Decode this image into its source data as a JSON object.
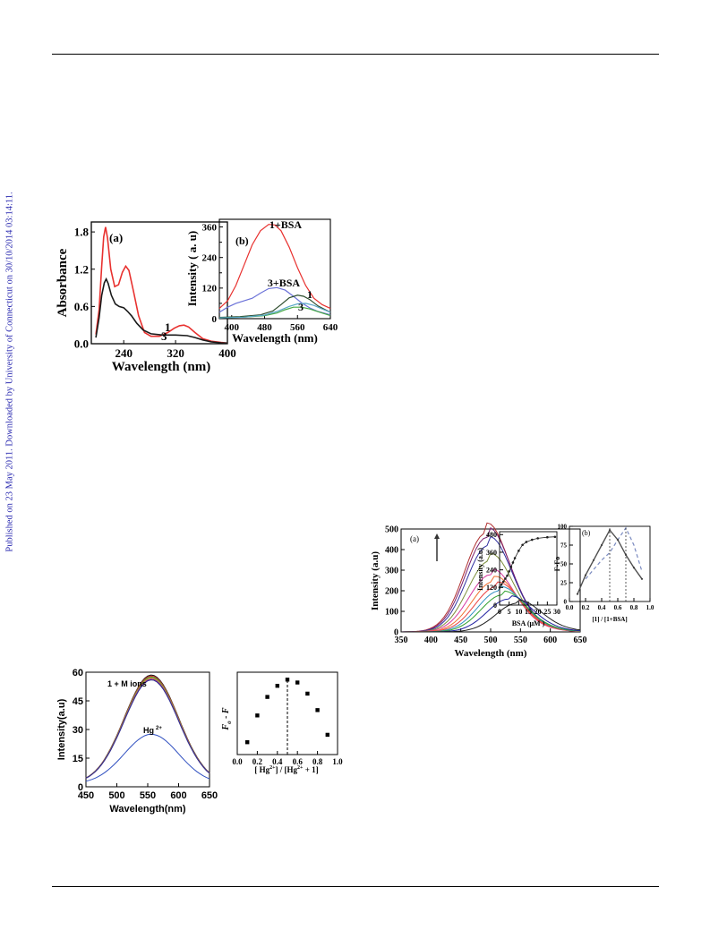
{
  "side_note": "Published on 23 May 2011. Downloaded by University of Connecticut on 30/10/2014 03:14:11.",
  "chart_data": [
    {
      "type": "line",
      "panel_label": "(a)",
      "xlabel": "Wavelength (nm)",
      "ylabel": "Absorbance",
      "xlim": [
        190,
        400
      ],
      "ylim": [
        0,
        2.0
      ],
      "x_ticks": [
        "240",
        "320",
        "400"
      ],
      "y_ticks": [
        "0.0",
        "0.6",
        "1.2",
        "1.8"
      ],
      "series": [
        {
          "name": "1",
          "color": "#e8312f",
          "x": [
            197,
            202,
            206,
            209,
            212,
            215,
            220,
            226,
            232,
            238,
            243,
            248,
            255,
            263,
            272,
            282,
            295,
            308,
            318,
            326,
            333,
            340,
            350,
            362,
            375,
            390,
            400
          ],
          "y": [
            0.15,
            0.55,
            1.25,
            1.72,
            1.88,
            1.7,
            1.2,
            0.92,
            0.95,
            1.15,
            1.25,
            1.18,
            0.85,
            0.45,
            0.18,
            0.12,
            0.12,
            0.18,
            0.25,
            0.29,
            0.3,
            0.27,
            0.18,
            0.08,
            0.04,
            0.02,
            0.01
          ]
        },
        {
          "name": "3",
          "color": "#1a1a1a",
          "x": [
            197,
            202,
            206,
            210,
            213,
            216,
            221,
            227,
            233,
            240,
            246,
            252,
            260,
            270,
            282,
            300,
            320,
            338,
            350,
            362,
            375,
            390,
            400
          ],
          "y": [
            0.1,
            0.42,
            0.78,
            0.98,
            1.04,
            0.97,
            0.78,
            0.64,
            0.6,
            0.58,
            0.52,
            0.45,
            0.33,
            0.22,
            0.16,
            0.14,
            0.14,
            0.13,
            0.1,
            0.06,
            0.03,
            0.015,
            0.01
          ]
        }
      ],
      "annotations": [
        "1",
        "3"
      ]
    },
    {
      "type": "line",
      "panel_label": "(b)",
      "xlabel": "Wavelength (nm)",
      "ylabel": "Intensity ( a. u)",
      "xlim": [
        370,
        640
      ],
      "ylim": [
        0,
        390
      ],
      "x_ticks": [
        "400",
        "480",
        "560",
        "640"
      ],
      "y_ticks": [
        "0",
        "60",
        "120",
        "180",
        "240",
        "300",
        "360"
      ],
      "series": [
        {
          "name": "1+BSA",
          "color": "#e8312f",
          "x": [
            370,
            390,
            410,
            430,
            450,
            470,
            490,
            505,
            520,
            540,
            560,
            580,
            600,
            620,
            640
          ],
          "y": [
            40,
            70,
            130,
            210,
            290,
            345,
            370,
            368,
            345,
            280,
            200,
            130,
            80,
            55,
            40
          ]
        },
        {
          "name": "3+BSA",
          "color": "#6b72d8",
          "x": [
            370,
            390,
            410,
            430,
            450,
            470,
            490,
            510,
            530,
            550,
            570,
            590,
            610,
            640
          ],
          "y": [
            25,
            45,
            60,
            70,
            80,
            100,
            118,
            122,
            112,
            88,
            62,
            42,
            28,
            15
          ]
        },
        {
          "name": "1",
          "color": "#2d4d2d",
          "x": [
            370,
            420,
            470,
            500,
            520,
            540,
            560,
            575,
            590,
            610,
            640
          ],
          "y": [
            5,
            8,
            15,
            30,
            55,
            82,
            92,
            88,
            75,
            50,
            25
          ]
        },
        {
          "name": "3",
          "color": "#45a845",
          "x": [
            370,
            430,
            480,
            510,
            530,
            550,
            570,
            590,
            620,
            640
          ],
          "y": [
            3,
            6,
            12,
            22,
            35,
            45,
            45,
            38,
            22,
            12
          ]
        },
        {
          "name": "",
          "color": "#5aa8c8",
          "x": [
            370,
            430,
            480,
            510,
            540,
            560,
            580,
            600,
            620,
            640
          ],
          "y": [
            3,
            6,
            14,
            28,
            48,
            58,
            60,
            52,
            38,
            25
          ]
        }
      ],
      "annotations": [
        "1+BSA",
        "3+BSA",
        "1",
        "3"
      ]
    },
    {
      "type": "line",
      "panel_label": "(a)",
      "xlabel": "Wavelength  (nm)",
      "ylabel": "Intensity (a.u)",
      "xlim": [
        350,
        650
      ],
      "ylim": [
        0,
        500
      ],
      "x_ticks": [
        "350",
        "400",
        "450",
        "500",
        "550",
        "600",
        "650"
      ],
      "y_ticks": [
        "0",
        "100",
        "200",
        "300",
        "400",
        "500"
      ],
      "series_peaks": [
        {
          "peak": 480,
          "center": 492,
          "color": "#b03030"
        },
        {
          "peak": 460,
          "center": 494,
          "color": "#7a1f6e"
        },
        {
          "peak": 420,
          "center": 496,
          "color": "#3030a0"
        },
        {
          "peak": 345,
          "center": 498,
          "color": "#7c8e3a"
        },
        {
          "peak": 278,
          "center": 500,
          "color": "#d6399f"
        },
        {
          "peak": 245,
          "center": 505,
          "color": "#f07030"
        },
        {
          "peak": 220,
          "center": 510,
          "color": "#e84040"
        },
        {
          "peak": 200,
          "center": 515,
          "color": "#3090c0"
        },
        {
          "peak": 180,
          "center": 520,
          "color": "#30a030"
        },
        {
          "peak": 160,
          "center": 530,
          "color": "#2020a0"
        },
        {
          "peak": 140,
          "center": 545,
          "color": "#202020"
        }
      ]
    },
    {
      "type": "line",
      "inset": true,
      "xlabel": "BSA   (μM )",
      "ylabel": "Intensity (a.u)",
      "xlim": [
        0,
        30
      ],
      "ylim": [
        0,
        500
      ],
      "x_ticks": [
        "0",
        "5",
        "10",
        "15",
        "20",
        "25",
        "30"
      ],
      "y_ticks": [
        "0",
        "120",
        "240",
        "360",
        "480"
      ],
      "x": [
        0,
        1,
        2,
        3,
        4,
        5,
        6,
        7,
        8,
        10,
        12,
        14,
        17,
        20,
        25,
        29
      ],
      "y": [
        120,
        140,
        160,
        180,
        200,
        230,
        260,
        290,
        320,
        370,
        410,
        430,
        445,
        455,
        462,
        465
      ]
    },
    {
      "type": "line",
      "panel_label": "(b)",
      "xlabel": "[1] / [1+BSA]",
      "ylabel": "F-Fo",
      "xlim": [
        0,
        1.0
      ],
      "ylim": [
        0,
        100
      ],
      "x_ticks": [
        "0.0",
        "0.2",
        "0.4",
        "0.6",
        "0.8",
        "1.0"
      ],
      "y_ticks": [
        "0",
        "25",
        "50",
        "75",
        "100"
      ],
      "series": [
        {
          "name": "solid",
          "color": "#505050",
          "x": [
            0.1,
            0.2,
            0.3,
            0.4,
            0.5,
            0.6,
            0.7,
            0.8,
            0.9
          ],
          "y": [
            10,
            35,
            55,
            75,
            95,
            82,
            62,
            45,
            30
          ]
        },
        {
          "name": "dashed",
          "color": "#7a8ac0",
          "x": [
            0.2,
            0.4,
            0.5,
            0.6,
            0.7,
            0.8,
            0.9
          ],
          "y": [
            30,
            55,
            65,
            82,
            98,
            75,
            40
          ]
        }
      ],
      "vlines": [
        0.5,
        0.7
      ]
    },
    {
      "type": "line",
      "xlabel": "Wavelength(nm)",
      "ylabel": "Intensity(a.u)",
      "xlim": [
        450,
        650
      ],
      "ylim": [
        0,
        60
      ],
      "x_ticks": [
        "450",
        "500",
        "550",
        "600",
        "650"
      ],
      "y_ticks": [
        "0",
        "15",
        "30",
        "45",
        "60"
      ],
      "annotations": [
        "1 + M ions",
        "Hg",
        "2+"
      ],
      "series_peaks": [
        {
          "peak": 57,
          "color": "#1a1a1a"
        },
        {
          "peak": 56.5,
          "color": "#e83030"
        },
        {
          "peak": 56,
          "color": "#30a030"
        },
        {
          "peak": 55.5,
          "color": "#d0a030"
        },
        {
          "peak": 55,
          "color": "#a03090"
        },
        {
          "peak": 54.5,
          "color": "#303090"
        },
        {
          "peak": 26,
          "color": "#3050c0"
        }
      ]
    },
    {
      "type": "scatter",
      "xlabel": "[ Hg",
      "xlabel_sup": "2+",
      "xlabel_mid": "] / [Hg",
      "xlabel_sup2": "2+",
      "xlabel_end": " + 1]",
      "ylabel": "F",
      "ylabel_sub": "o",
      "ylabel_end": " - F",
      "xlim": [
        0.0,
        1.0
      ],
      "ylim": [
        5,
        25
      ],
      "x_ticks": [
        "0.0",
        "0.2",
        "0.4",
        "0.6",
        "0.8",
        "1.0"
      ],
      "x": [
        0.1,
        0.2,
        0.3,
        0.4,
        0.5,
        0.6,
        0.7,
        0.8,
        0.9
      ],
      "y": [
        8,
        14.5,
        19,
        21.7,
        23.2,
        22.5,
        19.8,
        15.8,
        9.8
      ],
      "vline": 0.5
    }
  ]
}
